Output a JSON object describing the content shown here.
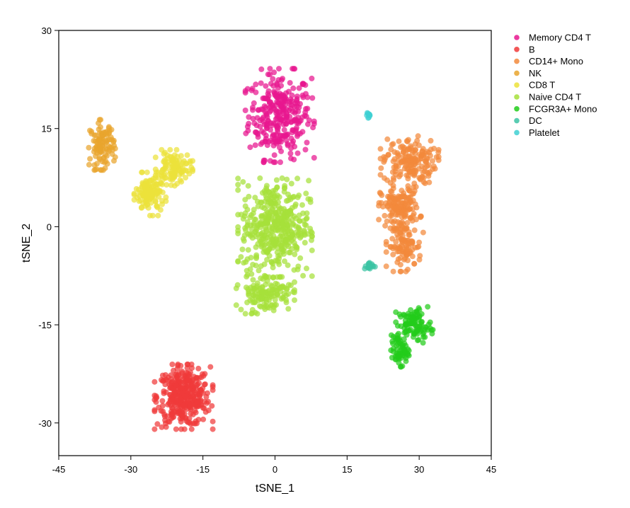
{
  "chart_data": {
    "type": "scatter",
    "title": "",
    "xlabel": "tSNE_1",
    "ylabel": "tSNE_2",
    "xlim": [
      -45,
      45
    ],
    "ylim": [
      -35,
      30
    ],
    "xticks": [
      -45,
      -30,
      -15,
      0,
      15,
      30,
      45
    ],
    "yticks": [
      -30,
      -15,
      0,
      15,
      30
    ],
    "xtick_labels": [
      "-45",
      "-30",
      "-15",
      "0",
      "15",
      "30",
      "45"
    ],
    "ytick_labels": [
      "-30",
      "-15",
      "0",
      "15",
      "30"
    ],
    "grid": false,
    "legend_position": "top-right outside",
    "point_opacity": 0.72,
    "series": [
      {
        "name": "Memory CD4 T",
        "color": "#e8168f",
        "count": 300,
        "clusters": [
          {
            "center": [
              1,
              17
            ],
            "spread": [
              6.5,
              6.5
            ],
            "share": 1.0
          }
        ]
      },
      {
        "name": "B",
        "color": "#f03a3a",
        "count": 360,
        "clusters": [
          {
            "center": [
              -19,
              -26
            ],
            "spread": [
              5.5,
              4.5
            ],
            "share": 1.0
          }
        ]
      },
      {
        "name": "CD14+ Mono",
        "color": "#f2893c",
        "count": 420,
        "clusters": [
          {
            "center": [
              28,
              10
            ],
            "spread": [
              5.5,
              3.5
            ],
            "share": 0.4
          },
          {
            "center": [
              26,
              3
            ],
            "spread": [
              4,
              3
            ],
            "share": 0.35
          },
          {
            "center": [
              27,
              -3
            ],
            "spread": [
              3.5,
              3.5
            ],
            "share": 0.25
          }
        ]
      },
      {
        "name": "NK",
        "color": "#e9a52e",
        "count": 110,
        "clusters": [
          {
            "center": [
              -36,
              12.5
            ],
            "spread": [
              2.5,
              3.5
            ],
            "share": 1.0
          }
        ]
      },
      {
        "name": "CD8 T",
        "color": "#ece23a",
        "count": 230,
        "clusters": [
          {
            "center": [
              -26,
              5
            ],
            "spread": [
              3,
              3
            ],
            "share": 0.55
          },
          {
            "center": [
              -21,
              9
            ],
            "spread": [
              3.5,
              2.5
            ],
            "share": 0.45
          }
        ]
      },
      {
        "name": "Naive CD4 T",
        "color": "#a6e03a",
        "count": 560,
        "clusters": [
          {
            "center": [
              0,
              0
            ],
            "spread": [
              7,
              7
            ],
            "share": 0.75
          },
          {
            "center": [
              -2,
              -10
            ],
            "spread": [
              5.5,
              3
            ],
            "share": 0.25
          }
        ]
      },
      {
        "name": "FCGR3A+ Mono",
        "color": "#22cc1a",
        "count": 160,
        "clusters": [
          {
            "center": [
              29,
              -15
            ],
            "spread": [
              3.5,
              2.5
            ],
            "share": 0.6
          },
          {
            "center": [
              26,
              -19
            ],
            "spread": [
              1.8,
              2.2
            ],
            "share": 0.4
          }
        ]
      },
      {
        "name": "DC",
        "color": "#3cc3a4",
        "count": 18,
        "clusters": [
          {
            "center": [
              19.5,
              -6
            ],
            "spread": [
              1.2,
              0.6
            ],
            "share": 1.0
          }
        ]
      },
      {
        "name": "Platelet",
        "color": "#3fd0d2",
        "count": 10,
        "clusters": [
          {
            "center": [
              19.5,
              17
            ],
            "spread": [
              0.4,
              0.6
            ],
            "share": 1.0
          }
        ]
      }
    ]
  }
}
